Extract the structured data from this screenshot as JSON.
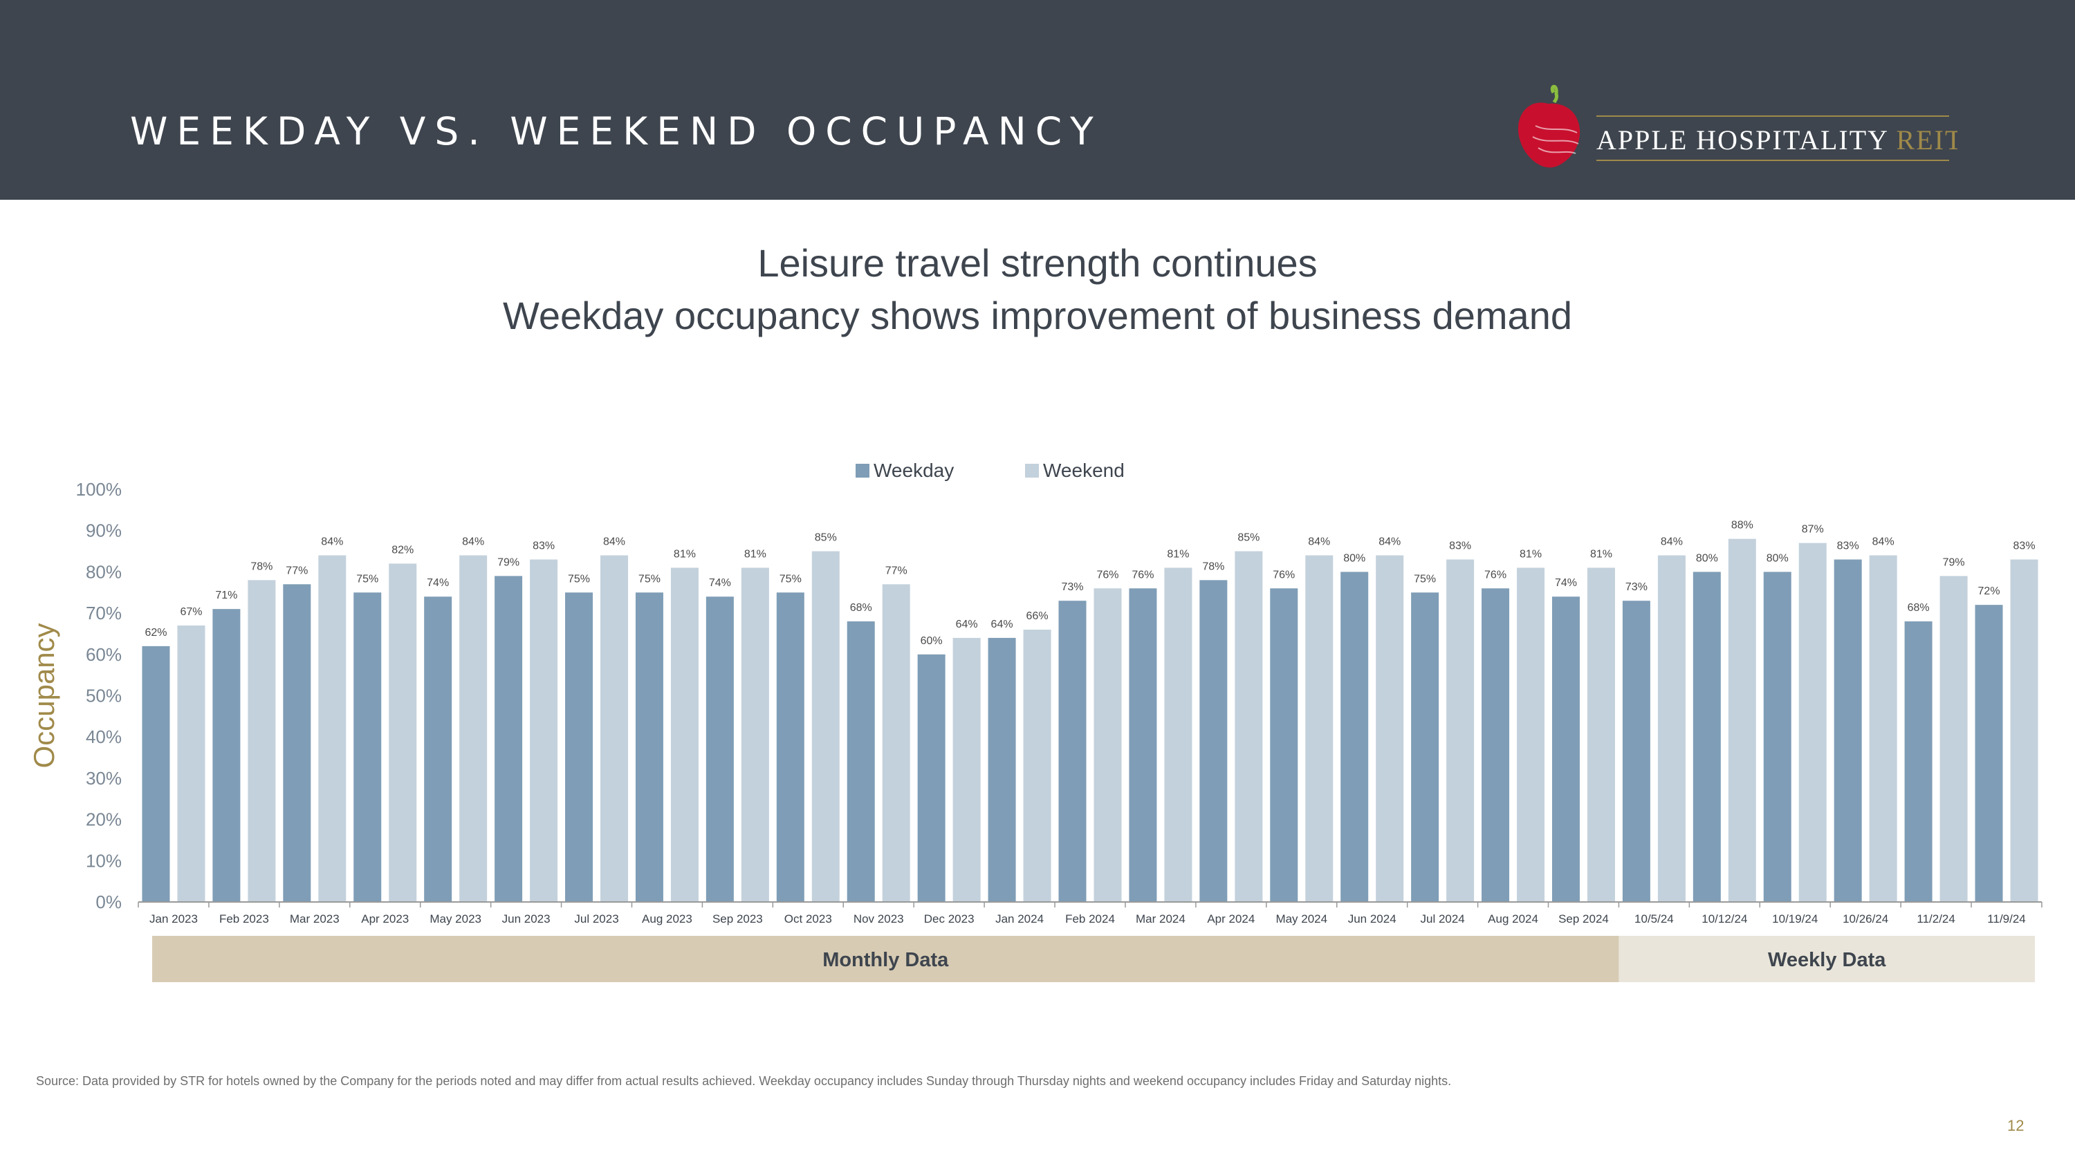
{
  "header": {
    "title": "WEEKDAY VS. WEEKEND OCCUPANCY",
    "logo_text_main": "APPLE HOSPITALITY",
    "logo_text_accent": "REIT",
    "colors": {
      "background": "#3e454e",
      "logo_red": "#c8102e",
      "logo_gold": "#a08a4a"
    }
  },
  "subtitle": {
    "line1": "Leisure travel strength continues",
    "line2": "Weekday occupancy shows improvement of business demand"
  },
  "chart_data": {
    "type": "bar",
    "ylabel": "Occupancy",
    "ylim": [
      0,
      100
    ],
    "yticks": [
      "0%",
      "10%",
      "20%",
      "30%",
      "40%",
      "50%",
      "60%",
      "70%",
      "80%",
      "90%",
      "100%"
    ],
    "legend_position": "top-center",
    "categories": [
      "Jan 2023",
      "Feb 2023",
      "Mar 2023",
      "Apr 2023",
      "May 2023",
      "Jun 2023",
      "Jul 2023",
      "Aug 2023",
      "Sep 2023",
      "Oct 2023",
      "Nov 2023",
      "Dec 2023",
      "Jan 2024",
      "Feb 2024",
      "Mar 2024",
      "Apr 2024",
      "May 2024",
      "Jun 2024",
      "Jul 2024",
      "Aug 2024",
      "Sep 2024",
      "10/5/24",
      "10/12/24",
      "10/19/24",
      "10/26/24",
      "11/2/24",
      "11/9/24"
    ],
    "series": [
      {
        "name": "Weekday",
        "color": "#7f9db6",
        "values": [
          62,
          71,
          77,
          75,
          74,
          79,
          75,
          75,
          74,
          75,
          68,
          60,
          64,
          73,
          76,
          78,
          76,
          80,
          75,
          76,
          74,
          73,
          80,
          80,
          83,
          68,
          72
        ]
      },
      {
        "name": "Weekend",
        "color": "#c3d1dc",
        "values": [
          67,
          78,
          84,
          82,
          84,
          83,
          84,
          81,
          81,
          85,
          77,
          64,
          66,
          76,
          81,
          85,
          84,
          84,
          83,
          81,
          81,
          84,
          88,
          87,
          84,
          79,
          83
        ]
      }
    ],
    "groups": [
      {
        "label": "Monthly Data",
        "from": 0,
        "to": 20,
        "color": "#d7cbb3"
      },
      {
        "label": "Weekly Data",
        "from": 21,
        "to": 26,
        "color": "#e9e5da"
      }
    ]
  },
  "footer": {
    "source": "Source:  Data provided by STR for hotels owned by the Company for the periods noted and may differ from actual results achieved. Weekday occupancy includes Sunday through Thursday nights and weekend occupancy includes Friday and Saturday nights.",
    "page_number": "12"
  }
}
